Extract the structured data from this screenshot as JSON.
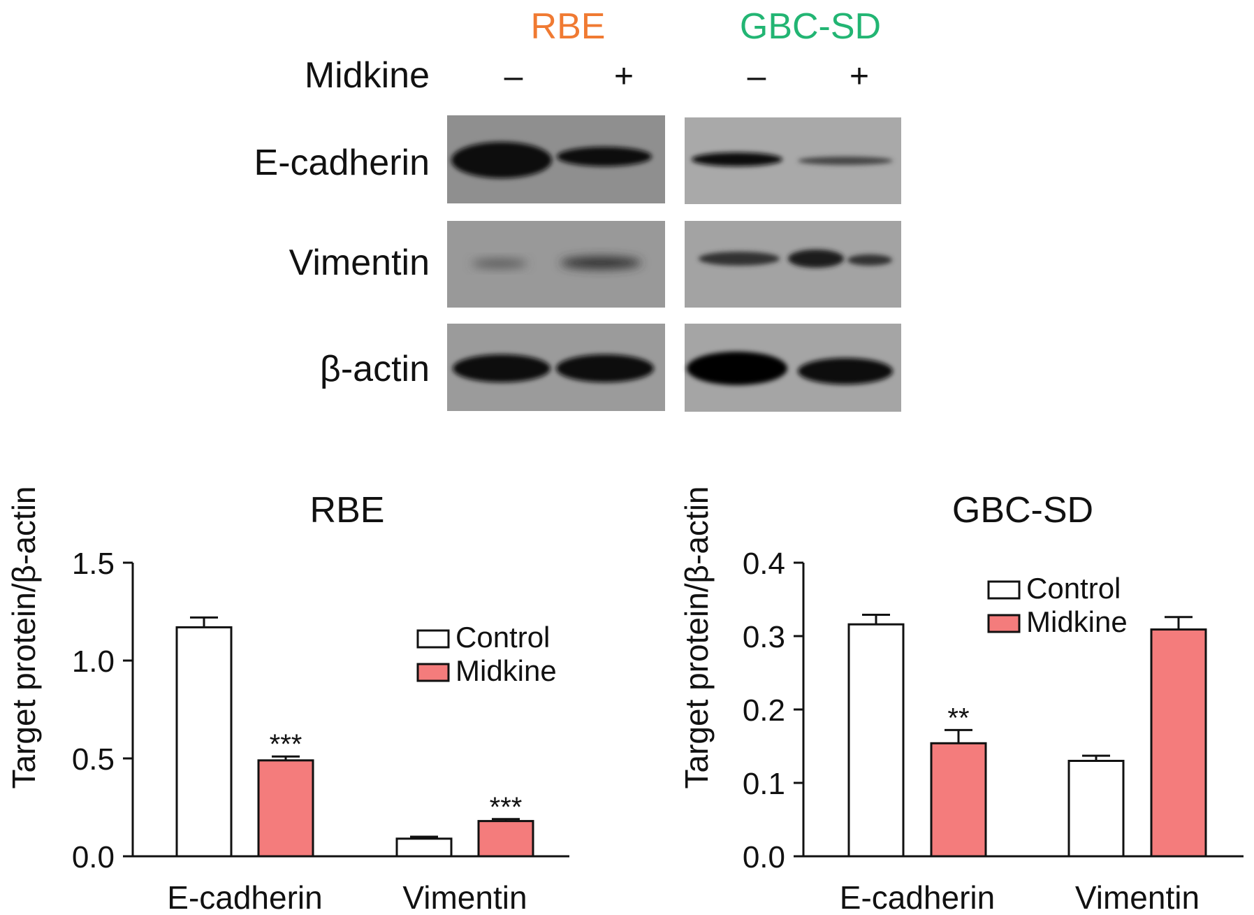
{
  "blot": {
    "treatment_label": "Midkine",
    "panels": [
      {
        "cell_line": "RBE",
        "color": "#f07a32",
        "lanes": [
          "–",
          "+"
        ]
      },
      {
        "cell_line": "GBC-SD",
        "color": "#22b573",
        "lanes": [
          "–",
          "+"
        ]
      }
    ],
    "rows": [
      "E-cadherin",
      "Vimentin",
      "β-actin"
    ]
  },
  "colors": {
    "control": "#ffffff",
    "midkine": "#f47c7c",
    "bar_stroke": "#111111"
  },
  "chart_data": [
    {
      "type": "bar",
      "title": "RBE",
      "ylabel": "Target protein/β-actin",
      "xlabel": "",
      "categories": [
        "E-cadherin",
        "Vimentin"
      ],
      "ylim": [
        0,
        1.5
      ],
      "yticks": [
        "0.0",
        "0.5",
        "1.0",
        "1.5"
      ],
      "yticks_values": [
        0,
        0.5,
        1.0,
        1.5
      ],
      "legend_position": "right",
      "series": [
        {
          "name": "Control",
          "values": [
            1.17,
            0.09
          ],
          "errors": [
            0.05,
            0.01
          ],
          "annotations": [
            "",
            ""
          ]
        },
        {
          "name": "Midkine",
          "values": [
            0.49,
            0.18
          ],
          "errors": [
            0.02,
            0.01
          ],
          "annotations": [
            "***",
            "***"
          ]
        }
      ]
    },
    {
      "type": "bar",
      "title": "GBC-SD",
      "ylabel": "Target protein/β-actin",
      "xlabel": "",
      "categories": [
        "E-cadherin",
        "Vimentin"
      ],
      "ylim": [
        0,
        0.4
      ],
      "yticks": [
        "0.0",
        "0.1",
        "0.2",
        "0.3",
        "0.4"
      ],
      "yticks_values": [
        0,
        0.1,
        0.2,
        0.3,
        0.4
      ],
      "legend_position": "top-right",
      "series": [
        {
          "name": "Control",
          "values": [
            0.316,
            0.13
          ],
          "errors": [
            0.013,
            0.007
          ],
          "annotations": [
            "",
            ""
          ]
        },
        {
          "name": "Midkine",
          "values": [
            0.154,
            0.309
          ],
          "errors": [
            0.018,
            0.017
          ],
          "annotations": [
            "**",
            ""
          ]
        }
      ]
    }
  ]
}
